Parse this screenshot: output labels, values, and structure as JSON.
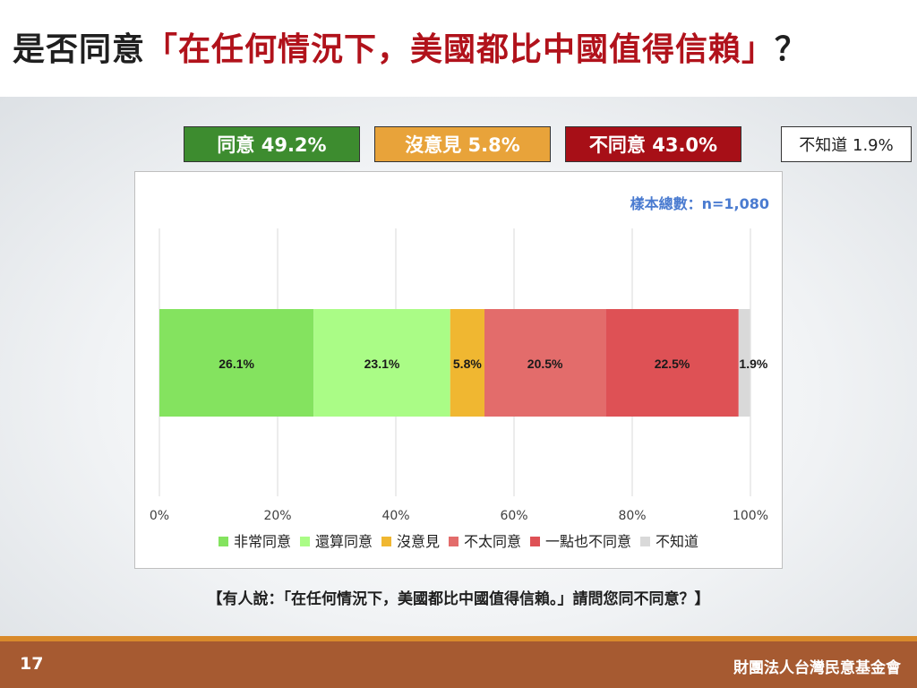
{
  "title": {
    "prefix": "是否同意",
    "quote": "「在任何情況下，美國都比中國值得信賴」",
    "suffix": "？"
  },
  "summary": [
    {
      "text": "同意 49.2%",
      "bg": "#3d8c2f",
      "fg": "#ffffff"
    },
    {
      "text": "沒意見 5.8%",
      "bg": "#e8a33a",
      "fg": "#ffffff"
    },
    {
      "text": "不同意 43.0%",
      "bg": "#a70f17",
      "fg": "#ffffff"
    },
    {
      "text": "不知道 1.9%",
      "bg": "#ffffff",
      "fg": "#1f1f1f"
    }
  ],
  "sample_size": "樣本總數：n=1,080",
  "chart_data": {
    "type": "bar",
    "orientation": "horizontal",
    "stacked": true,
    "xlim": [
      0,
      100
    ],
    "ticks": [
      "0%",
      "20%",
      "40%",
      "60%",
      "80%",
      "100%"
    ],
    "grid": true,
    "legend_position": "bottom",
    "series": [
      {
        "name": "非常同意",
        "value": 26.1,
        "label": "26.1%",
        "color": "#84e35f"
      },
      {
        "name": "還算同意",
        "value": 23.1,
        "label": "23.1%",
        "color": "#aafc86"
      },
      {
        "name": "沒意見",
        "value": 5.8,
        "label": "5.8%",
        "color": "#f0b731"
      },
      {
        "name": "不太同意",
        "value": 20.5,
        "label": "20.5%",
        "color": "#e36c6b"
      },
      {
        "name": "一點也不同意",
        "value": 22.5,
        "label": "22.5%",
        "color": "#de5155"
      },
      {
        "name": "不知道",
        "value": 1.9,
        "label": "1.9%",
        "color": "#d9d9d9"
      }
    ]
  },
  "caption": "【有人說：「在任何情況下，美國都比中國值得信賴。」請問您同不同意？】",
  "footer": {
    "page": "17",
    "org": "財團法人台灣民意基金會"
  }
}
